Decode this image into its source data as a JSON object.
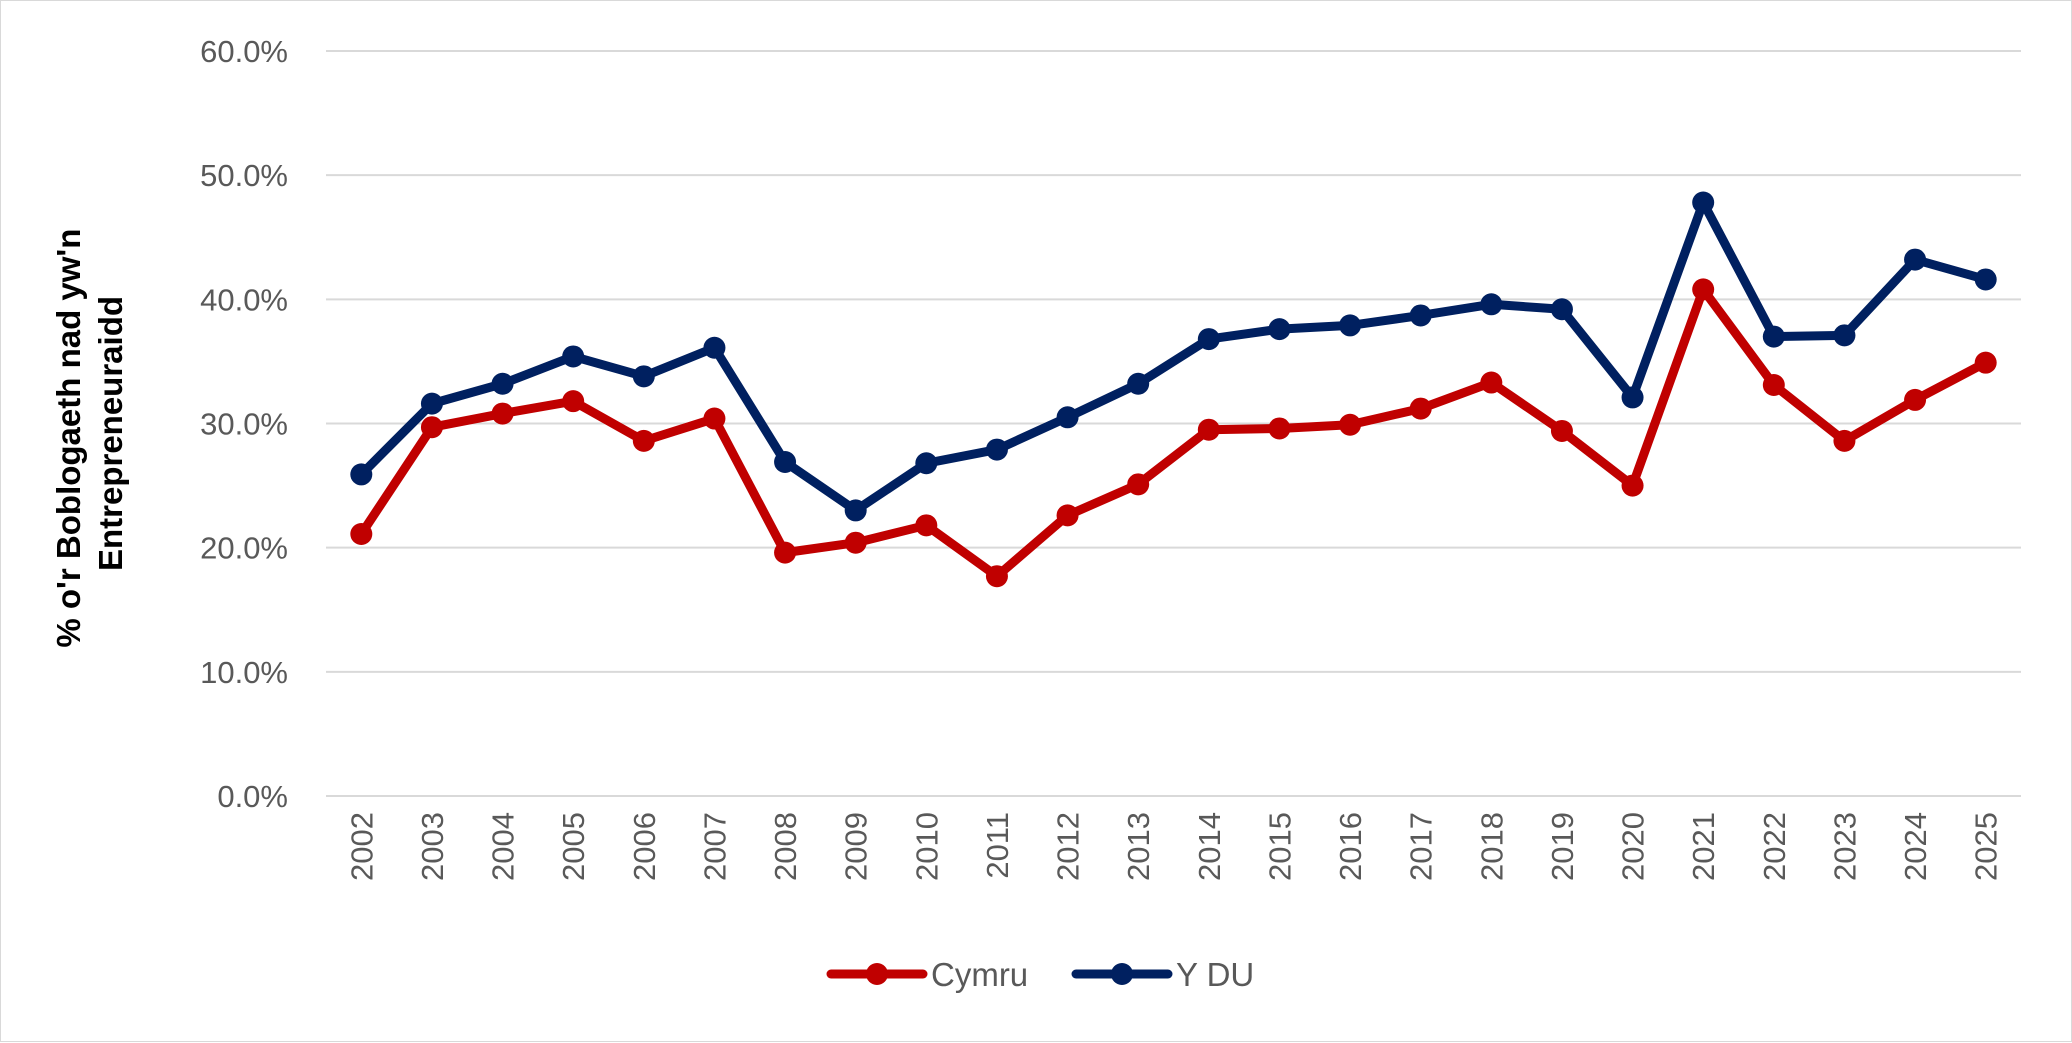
{
  "chart_data": {
    "type": "line",
    "title": "",
    "xlabel": "",
    "ylabel_lines": [
      "% o'r Boblogaeth nad yw'n",
      "Entrepreneuraidd"
    ],
    "x": [
      "2002",
      "2003",
      "2004",
      "2005",
      "2006",
      "2007",
      "2008",
      "2009",
      "2010",
      "2011",
      "2012",
      "2013",
      "2014",
      "2015",
      "2016",
      "2017",
      "2018",
      "2019",
      "2020",
      "2021",
      "2022",
      "2023",
      "2024",
      "2025"
    ],
    "ylim": [
      0,
      60
    ],
    "yticks": [
      "0.0%",
      "10.0%",
      "20.0%",
      "30.0%",
      "40.0%",
      "50.0%",
      "60.0%"
    ],
    "grid": true,
    "legend_position": "bottom",
    "series": [
      {
        "name": "Cymru",
        "color": "#c00000",
        "values": [
          21.1,
          29.7,
          30.8,
          31.8,
          28.6,
          30.4,
          19.6,
          20.4,
          21.8,
          17.7,
          22.6,
          25.1,
          29.5,
          29.6,
          29.9,
          31.2,
          33.3,
          29.4,
          25.0,
          40.8,
          33.1,
          28.6,
          31.9,
          34.9
        ]
      },
      {
        "name": "Y DU",
        "color": "#002060",
        "values": [
          25.9,
          31.6,
          33.2,
          35.4,
          33.8,
          36.1,
          26.9,
          23.0,
          26.8,
          27.9,
          30.5,
          33.2,
          36.8,
          37.6,
          37.9,
          38.7,
          39.6,
          39.2,
          32.1,
          47.8,
          37.0,
          37.1,
          43.2,
          41.6
        ]
      }
    ]
  }
}
